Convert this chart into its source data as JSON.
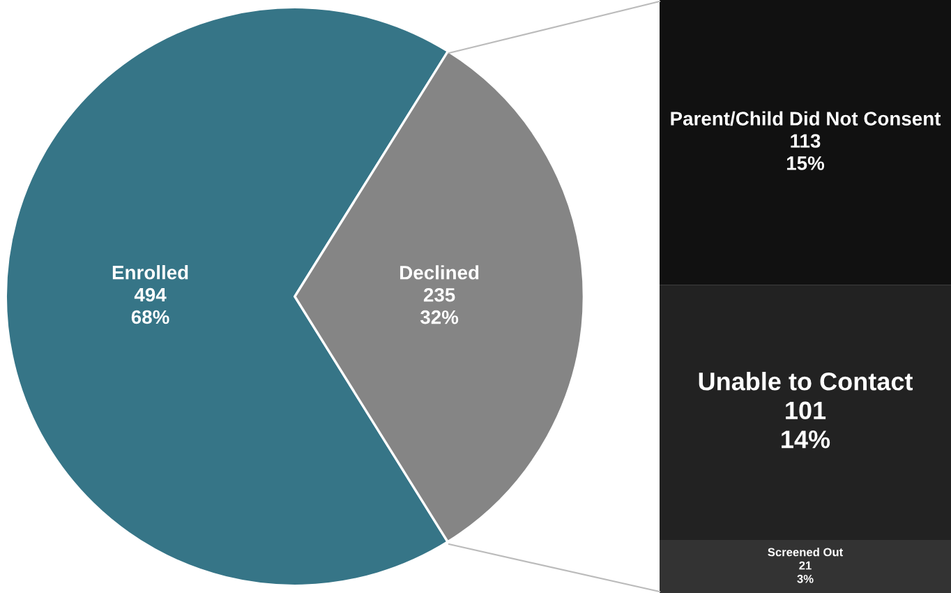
{
  "chart_data": [
    {
      "type": "pie",
      "categories": [
        "Enrolled",
        "Declined"
      ],
      "values": [
        494,
        235
      ],
      "colors": [
        "#367587",
        "#858585"
      ],
      "value_labels": [
        "494\n68%",
        "235\n32%"
      ],
      "legend": false
    },
    {
      "type": "bar",
      "stacked": true,
      "categories": [
        null
      ],
      "tick_labels": false,
      "series": [
        {
          "name": "Screened Out",
          "color": "#333333",
          "values": [
            21
          ],
          "value_labels": [
            "21\n3%"
          ]
        },
        {
          "name": "Unable to Contact",
          "color": "#222222",
          "values": [
            101
          ],
          "value_labels": [
            "101\n14%"
          ]
        },
        {
          "name": "Parent/Child Did Not Consent",
          "color": "#111111",
          "values": [
            113
          ],
          "value_labels": [
            "113\n15%"
          ]
        }
      ]
    }
  ]
}
